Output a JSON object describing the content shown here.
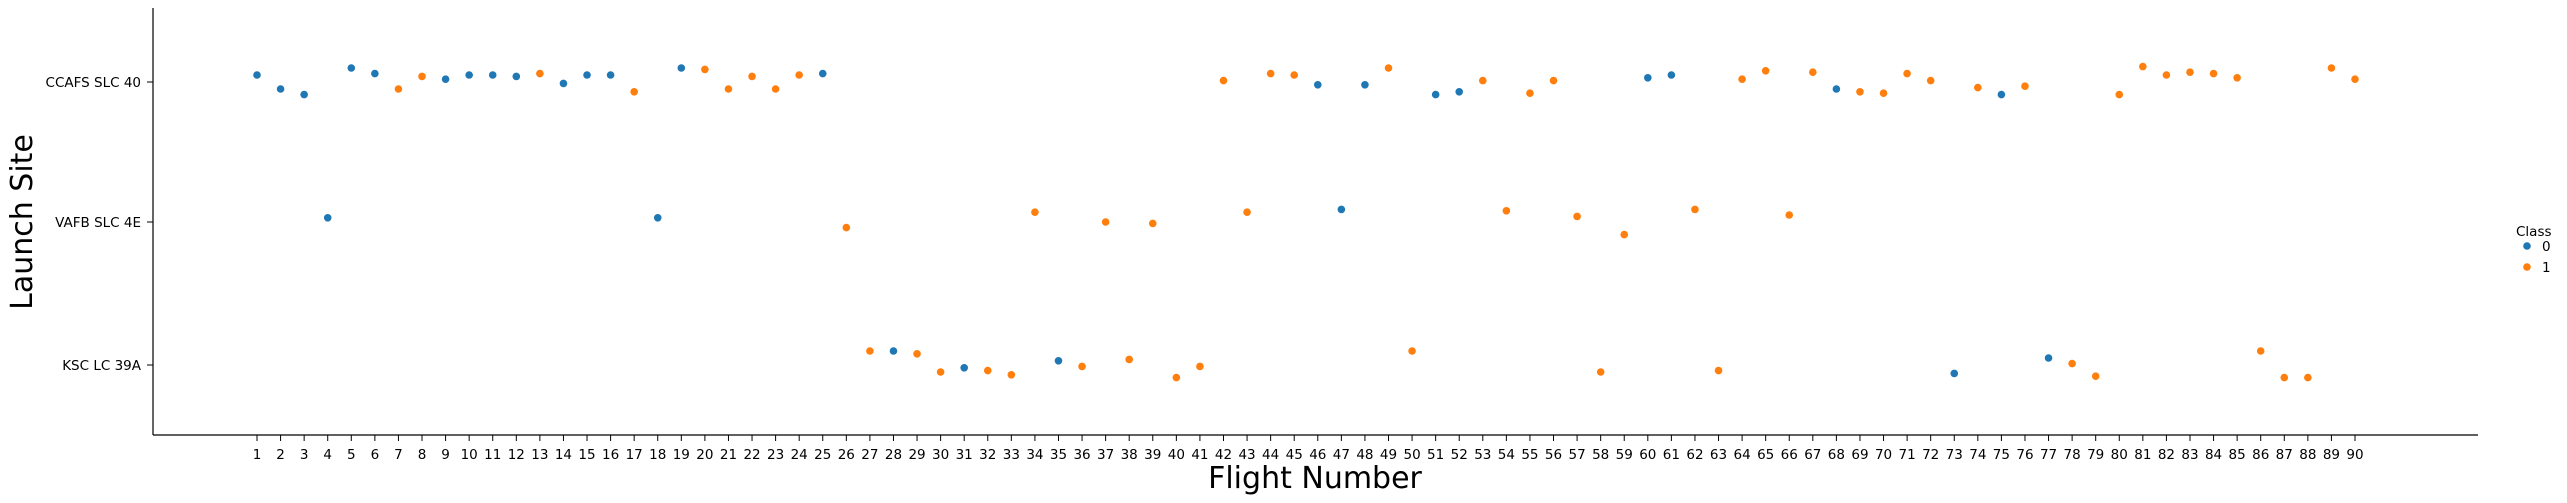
{
  "chart_data": {
    "type": "scatter",
    "title": "",
    "xlabel": "Flight Number",
    "ylabel": "Launch Site",
    "categories": [
      "CCAFS SLC 40",
      "VAFB SLC 4E",
      "KSC LC 39A"
    ],
    "x": [
      1,
      2,
      3,
      4,
      5,
      6,
      7,
      8,
      9,
      10,
      11,
      12,
      13,
      14,
      15,
      16,
      17,
      18,
      19,
      20,
      21,
      22,
      23,
      24,
      25,
      26,
      27,
      28,
      29,
      30,
      31,
      32,
      33,
      34,
      35,
      36,
      37,
      38,
      39,
      40,
      41,
      42,
      43,
      44,
      45,
      46,
      47,
      48,
      49,
      50,
      51,
      52,
      53,
      54,
      55,
      56,
      57,
      58,
      59,
      60,
      61,
      62,
      63,
      64,
      65,
      66,
      67,
      68,
      69,
      70,
      71,
      72,
      73,
      74,
      75,
      76,
      77,
      78,
      79,
      80,
      81,
      82,
      83,
      84,
      85,
      86,
      87,
      88,
      89,
      90
    ],
    "site": [
      "CCAFS SLC 40",
      "CCAFS SLC 40",
      "CCAFS SLC 40",
      "VAFB SLC 4E",
      "CCAFS SLC 40",
      "CCAFS SLC 40",
      "CCAFS SLC 40",
      "CCAFS SLC 40",
      "CCAFS SLC 40",
      "CCAFS SLC 40",
      "CCAFS SLC 40",
      "CCAFS SLC 40",
      "CCAFS SLC 40",
      "CCAFS SLC 40",
      "CCAFS SLC 40",
      "CCAFS SLC 40",
      "CCAFS SLC 40",
      "VAFB SLC 4E",
      "CCAFS SLC 40",
      "CCAFS SLC 40",
      "CCAFS SLC 40",
      "CCAFS SLC 40",
      "CCAFS SLC 40",
      "CCAFS SLC 40",
      "CCAFS SLC 40",
      "VAFB SLC 4E",
      "KSC LC 39A",
      "KSC LC 39A",
      "KSC LC 39A",
      "KSC LC 39A",
      "KSC LC 39A",
      "KSC LC 39A",
      "KSC LC 39A",
      "VAFB SLC 4E",
      "KSC LC 39A",
      "KSC LC 39A",
      "VAFB SLC 4E",
      "KSC LC 39A",
      "VAFB SLC 4E",
      "KSC LC 39A",
      "KSC LC 39A",
      "CCAFS SLC 40",
      "VAFB SLC 4E",
      "CCAFS SLC 40",
      "CCAFS SLC 40",
      "CCAFS SLC 40",
      "VAFB SLC 4E",
      "CCAFS SLC 40",
      "CCAFS SLC 40",
      "KSC LC 39A",
      "CCAFS SLC 40",
      "CCAFS SLC 40",
      "CCAFS SLC 40",
      "VAFB SLC 4E",
      "CCAFS SLC 40",
      "CCAFS SLC 40",
      "VAFB SLC 4E",
      "KSC LC 39A",
      "VAFB SLC 4E",
      "CCAFS SLC 40",
      "CCAFS SLC 40",
      "VAFB SLC 4E",
      "KSC LC 39A",
      "CCAFS SLC 40",
      "CCAFS SLC 40",
      "VAFB SLC 4E",
      "CCAFS SLC 40",
      "CCAFS SLC 40",
      "CCAFS SLC 40",
      "CCAFS SLC 40",
      "CCAFS SLC 40",
      "CCAFS SLC 40",
      "KSC LC 39A",
      "CCAFS SLC 40",
      "CCAFS SLC 40",
      "CCAFS SLC 40",
      "KSC LC 39A",
      "KSC LC 39A",
      "KSC LC 39A",
      "CCAFS SLC 40",
      "CCAFS SLC 40",
      "CCAFS SLC 40",
      "CCAFS SLC 40",
      "CCAFS SLC 40",
      "CCAFS SLC 40",
      "KSC LC 39A",
      "KSC LC 39A",
      "KSC LC 39A",
      "CCAFS SLC 40",
      "CCAFS SLC 40"
    ],
    "class": [
      0,
      0,
      0,
      0,
      0,
      0,
      1,
      1,
      0,
      0,
      0,
      0,
      1,
      0,
      0,
      0,
      1,
      0,
      0,
      1,
      1,
      1,
      1,
      1,
      0,
      1,
      1,
      0,
      1,
      1,
      0,
      1,
      1,
      1,
      0,
      1,
      1,
      1,
      1,
      1,
      1,
      1,
      1,
      1,
      1,
      0,
      0,
      0,
      1,
      1,
      0,
      0,
      1,
      1,
      1,
      1,
      1,
      1,
      1,
      0,
      0,
      1,
      1,
      1,
      1,
      1,
      1,
      0,
      1,
      1,
      1,
      1,
      0,
      1,
      0,
      1,
      0,
      1,
      1,
      1,
      1,
      1,
      1,
      1,
      1,
      1,
      1,
      1,
      1,
      1
    ],
    "jitter": [
      0.05,
      -0.05,
      -0.09,
      0.03,
      0.1,
      0.06,
      -0.05,
      0.04,
      0.02,
      0.05,
      0.05,
      0.04,
      0.06,
      -0.01,
      0.05,
      0.05,
      -0.07,
      0.03,
      0.1,
      0.09,
      -0.05,
      0.04,
      -0.05,
      0.05,
      0.06,
      -0.04,
      0.1,
      0.1,
      0.08,
      -0.05,
      -0.02,
      -0.04,
      -0.07,
      0.07,
      0.03,
      -0.01,
      0.0,
      0.04,
      -0.01,
      -0.09,
      -0.01,
      0.01,
      0.07,
      0.06,
      0.05,
      -0.02,
      0.09,
      -0.02,
      0.1,
      0.1,
      -0.09,
      -0.07,
      0.01,
      0.08,
      -0.08,
      0.01,
      0.04,
      -0.05,
      -0.09,
      0.03,
      0.05,
      0.09,
      -0.04,
      0.02,
      0.08,
      0.05,
      0.07,
      -0.05,
      -0.07,
      -0.08,
      0.06,
      0.01,
      -0.06,
      -0.04,
      -0.09,
      -0.03,
      0.05,
      0.01,
      -0.08,
      -0.09,
      0.11,
      0.05,
      0.07,
      0.06,
      0.03,
      0.1,
      -0.09,
      -0.09,
      0.1,
      0.02
    ],
    "legend": {
      "title": "Class",
      "items": [
        {
          "label": "0",
          "color": "#1f77b4"
        },
        {
          "label": "1",
          "color": "#ff7f0e"
        }
      ],
      "placement": "right"
    },
    "grid": false
  }
}
